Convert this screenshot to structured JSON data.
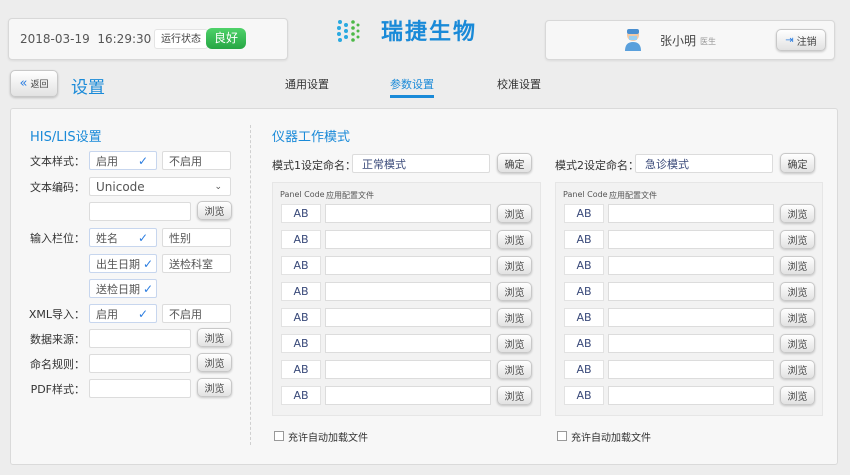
{
  "header": {
    "datetime": "2018-03-19  16:29:30",
    "status_label": "运行状态",
    "status_value": "良好",
    "brand": "瑞捷生物",
    "user_name": "张小明",
    "user_role": "医生",
    "logout_label": "注销",
    "colors": {
      "accent": "#1a8ad8",
      "status": "#2fb44f"
    }
  },
  "nav": {
    "back_label": "返回",
    "page_title": "设置",
    "tabs": [
      {
        "label": "通用设置",
        "active": false
      },
      {
        "label": "参数设置",
        "active": true
      },
      {
        "label": "校准设置",
        "active": false
      }
    ]
  },
  "his": {
    "title": "HIS/LIS设置",
    "browse": "浏览",
    "text_style": {
      "label": "文本样式：",
      "opt1": "启用",
      "opt2": "不启用",
      "selected": "启用"
    },
    "encoding": {
      "label": "文本编码：",
      "value": "Unicode"
    },
    "fields": {
      "label": "输入栏位：",
      "items": [
        {
          "label": "姓名",
          "checked": true
        },
        {
          "label": "性别",
          "checked": false
        },
        {
          "label": "出生日期",
          "checked": true
        },
        {
          "label": "送检科室",
          "checked": false
        },
        {
          "label": "送检日期",
          "checked": true
        }
      ]
    },
    "xml": {
      "label": "XML导入：",
      "opt1": "启用",
      "opt2": "不启用",
      "selected": "启用"
    },
    "data_source": {
      "label": "数据来源："
    },
    "naming": {
      "label": "命名规则："
    },
    "pdf": {
      "label": "PDF样式："
    }
  },
  "modes": {
    "title": "仪器工作模式",
    "confirm": "确定",
    "browse": "浏览",
    "col_code": "Panel Code",
    "col_file": "应用配置文件",
    "auto_load": "充许自动加载文件",
    "mode1": {
      "label": "模式1设定命名：",
      "value": "正常模式",
      "rows": [
        "AB",
        "AB",
        "AB",
        "AB",
        "AB",
        "AB",
        "AB",
        "AB"
      ]
    },
    "mode2": {
      "label": "模式2设定命名：",
      "value": "急诊模式",
      "rows": [
        "AB",
        "AB",
        "AB",
        "AB",
        "AB",
        "AB",
        "AB",
        "AB"
      ]
    }
  }
}
